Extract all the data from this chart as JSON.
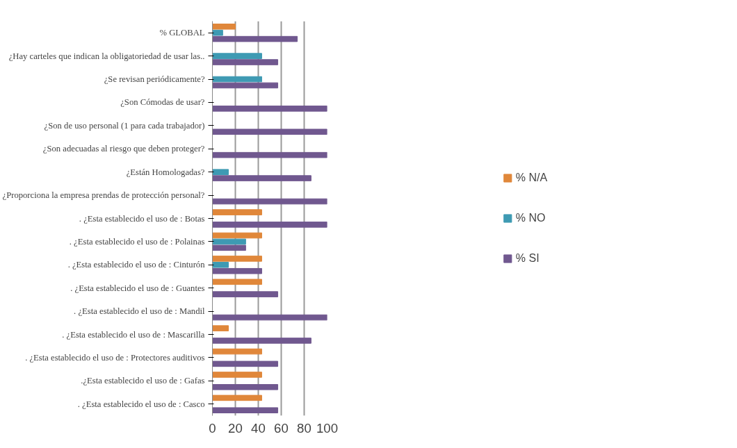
{
  "chart_data": {
    "type": "bar",
    "orientation": "horizontal",
    "categories": [
      "% GLOBAL",
      "¿Hay carteles que indican la obligatoriedad de usar las..",
      "¿Se revisan periódicamente?",
      "¿Son Cómodas de usar?",
      "¿Son de uso personal (1 para cada trabajador)",
      "¿Son adecuadas al riesgo que deben proteger?",
      "¿Están Homologadas?",
      "¿Proporciona la empresa prendas de protección personal?",
      ". ¿Esta establecido el uso de : Botas",
      ". ¿Esta establecido el uso de : Polainas",
      ". ¿Esta establecido el uso de : Cinturón",
      ". ¿Esta establecido el uso de : Guantes",
      ". ¿Esta establecido el uso de : Mandil",
      ". ¿Esta establecido el uso de : Mascarilla",
      ". ¿Esta establecido el uso de : Protectores auditivos",
      ".¿Esta establecido el uso de : Gafas",
      ". ¿Esta establecido el uso de : Casco"
    ],
    "series": [
      {
        "name": "% N/A",
        "color": "#e0873a",
        "values": [
          20,
          0,
          0,
          0,
          0,
          0,
          0,
          0,
          43,
          43,
          43,
          43,
          0,
          14,
          43,
          43,
          43
        ]
      },
      {
        "name": "% NO",
        "color": "#3e9ab3",
        "values": [
          9,
          43,
          43,
          0,
          0,
          0,
          14,
          0,
          0,
          29,
          14,
          0,
          0,
          0,
          0,
          0,
          0
        ]
      },
      {
        "name": "% SI",
        "color": "#70588f",
        "values": [
          74,
          57,
          57,
          100,
          100,
          100,
          86,
          100,
          100,
          29,
          43,
          57,
          100,
          86,
          57,
          57,
          57
        ]
      }
    ],
    "xlim": [
      0,
      100
    ],
    "xticks": [
      0,
      20,
      40,
      60,
      80,
      100
    ],
    "grid": "x",
    "legend": "right"
  }
}
